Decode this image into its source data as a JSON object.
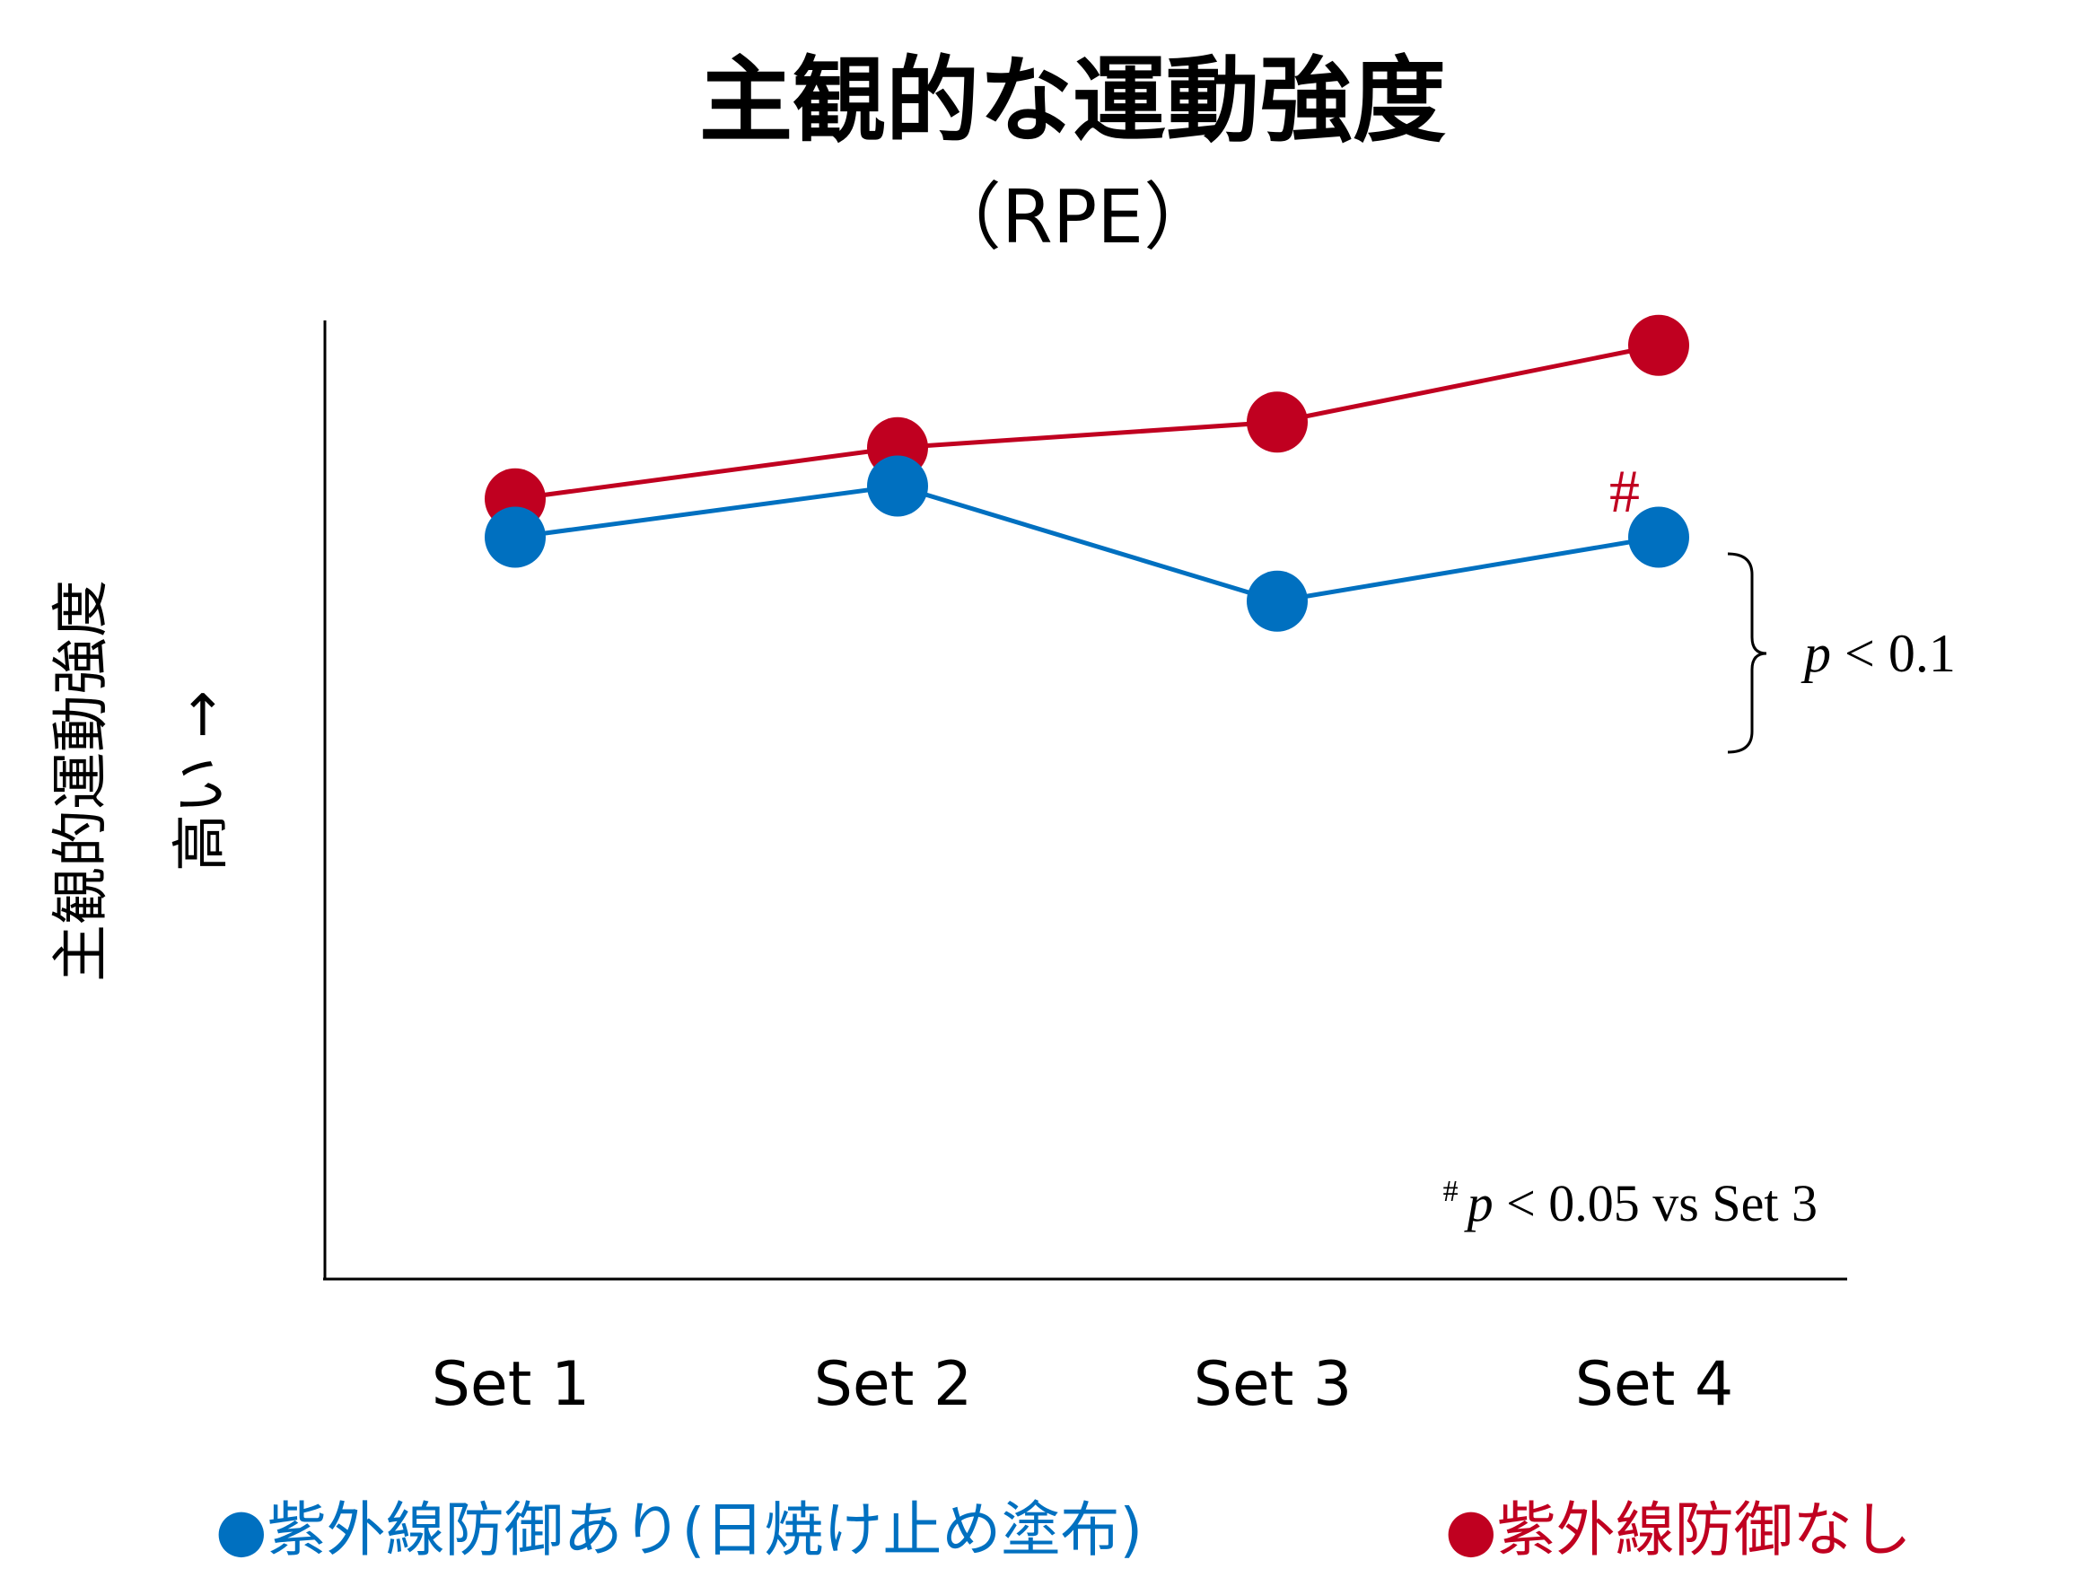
{
  "chart_data": {
    "type": "line",
    "title": "主観的な運動強度",
    "subtitle": "（RPE）",
    "ylabel_line1": "主観的運動強度",
    "ylabel_line2": "高い →",
    "categories": [
      "Set 1",
      "Set 2",
      "Set 3",
      "Set 4"
    ],
    "ylim": [
      0,
      10
    ],
    "grid": false,
    "legend_placement": "bottom",
    "series": [
      {
        "name": "紫外線防御あり(日焼け止め塗布)",
        "legend_label": "●紫外線防御あり(日焼け止め塗布)",
        "color": "#0070c0",
        "values": [
          5.8,
          6.2,
          5.3,
          5.8
        ]
      },
      {
        "name": "紫外線防御なし",
        "legend_label": "●紫外線防御なし",
        "color": "#c00020",
        "values": [
          6.1,
          6.5,
          6.7,
          7.3
        ]
      }
    ],
    "annotations": {
      "hash_marker": "#",
      "bracket_label_p": "p",
      "bracket_label_rest": " < 0.1",
      "footnote_hash": "#",
      "footnote_p": "p",
      "footnote_rest": " < 0.05 vs Set 3"
    }
  }
}
